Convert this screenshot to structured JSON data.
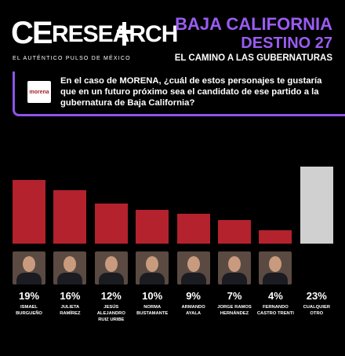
{
  "header": {
    "logo_ce": "CE",
    "logo_research": "RESEARCH",
    "tagline": "EL AUTÉNTICO PULSO DE MÉXICO"
  },
  "chart_data": {
    "type": "bar",
    "title": "BAJA CALIFORNIA",
    "subtitle": "DESTINO 27",
    "tagline": "EL CAMINO A LAS GUBERNATURAS",
    "party_logo": "morena",
    "question": "En el caso de MORENA, ¿cuál de estos personajes te gustaría que en un futuro próximo sea el candidato de ese partido a la gubernatura de Baja California?",
    "categories": [
      "ISMAEL BURGUEÑO",
      "JULIETA RAMÍREZ",
      "JESÚS ALEJANDRO RUIZ URIBE",
      "NORMA BUSTAMANTE",
      "ARMANDO AYALA",
      "JORGE RAMOS HERNÁNDEZ",
      "FERNANDO CASTRO TRENTI",
      "CUALQUIER OTRO"
    ],
    "values": [
      19,
      16,
      12,
      10,
      9,
      7,
      4,
      23
    ],
    "value_labels": [
      "19%",
      "16%",
      "12%",
      "10%",
      "9%",
      "7%",
      "4%",
      "23%"
    ],
    "colors": [
      "#b3222d",
      "#b3222d",
      "#b3222d",
      "#b3222d",
      "#b3222d",
      "#b3222d",
      "#b3222d",
      "#d0d0d0"
    ],
    "photos": [
      true,
      true,
      true,
      true,
      true,
      true,
      true,
      false
    ]
  }
}
